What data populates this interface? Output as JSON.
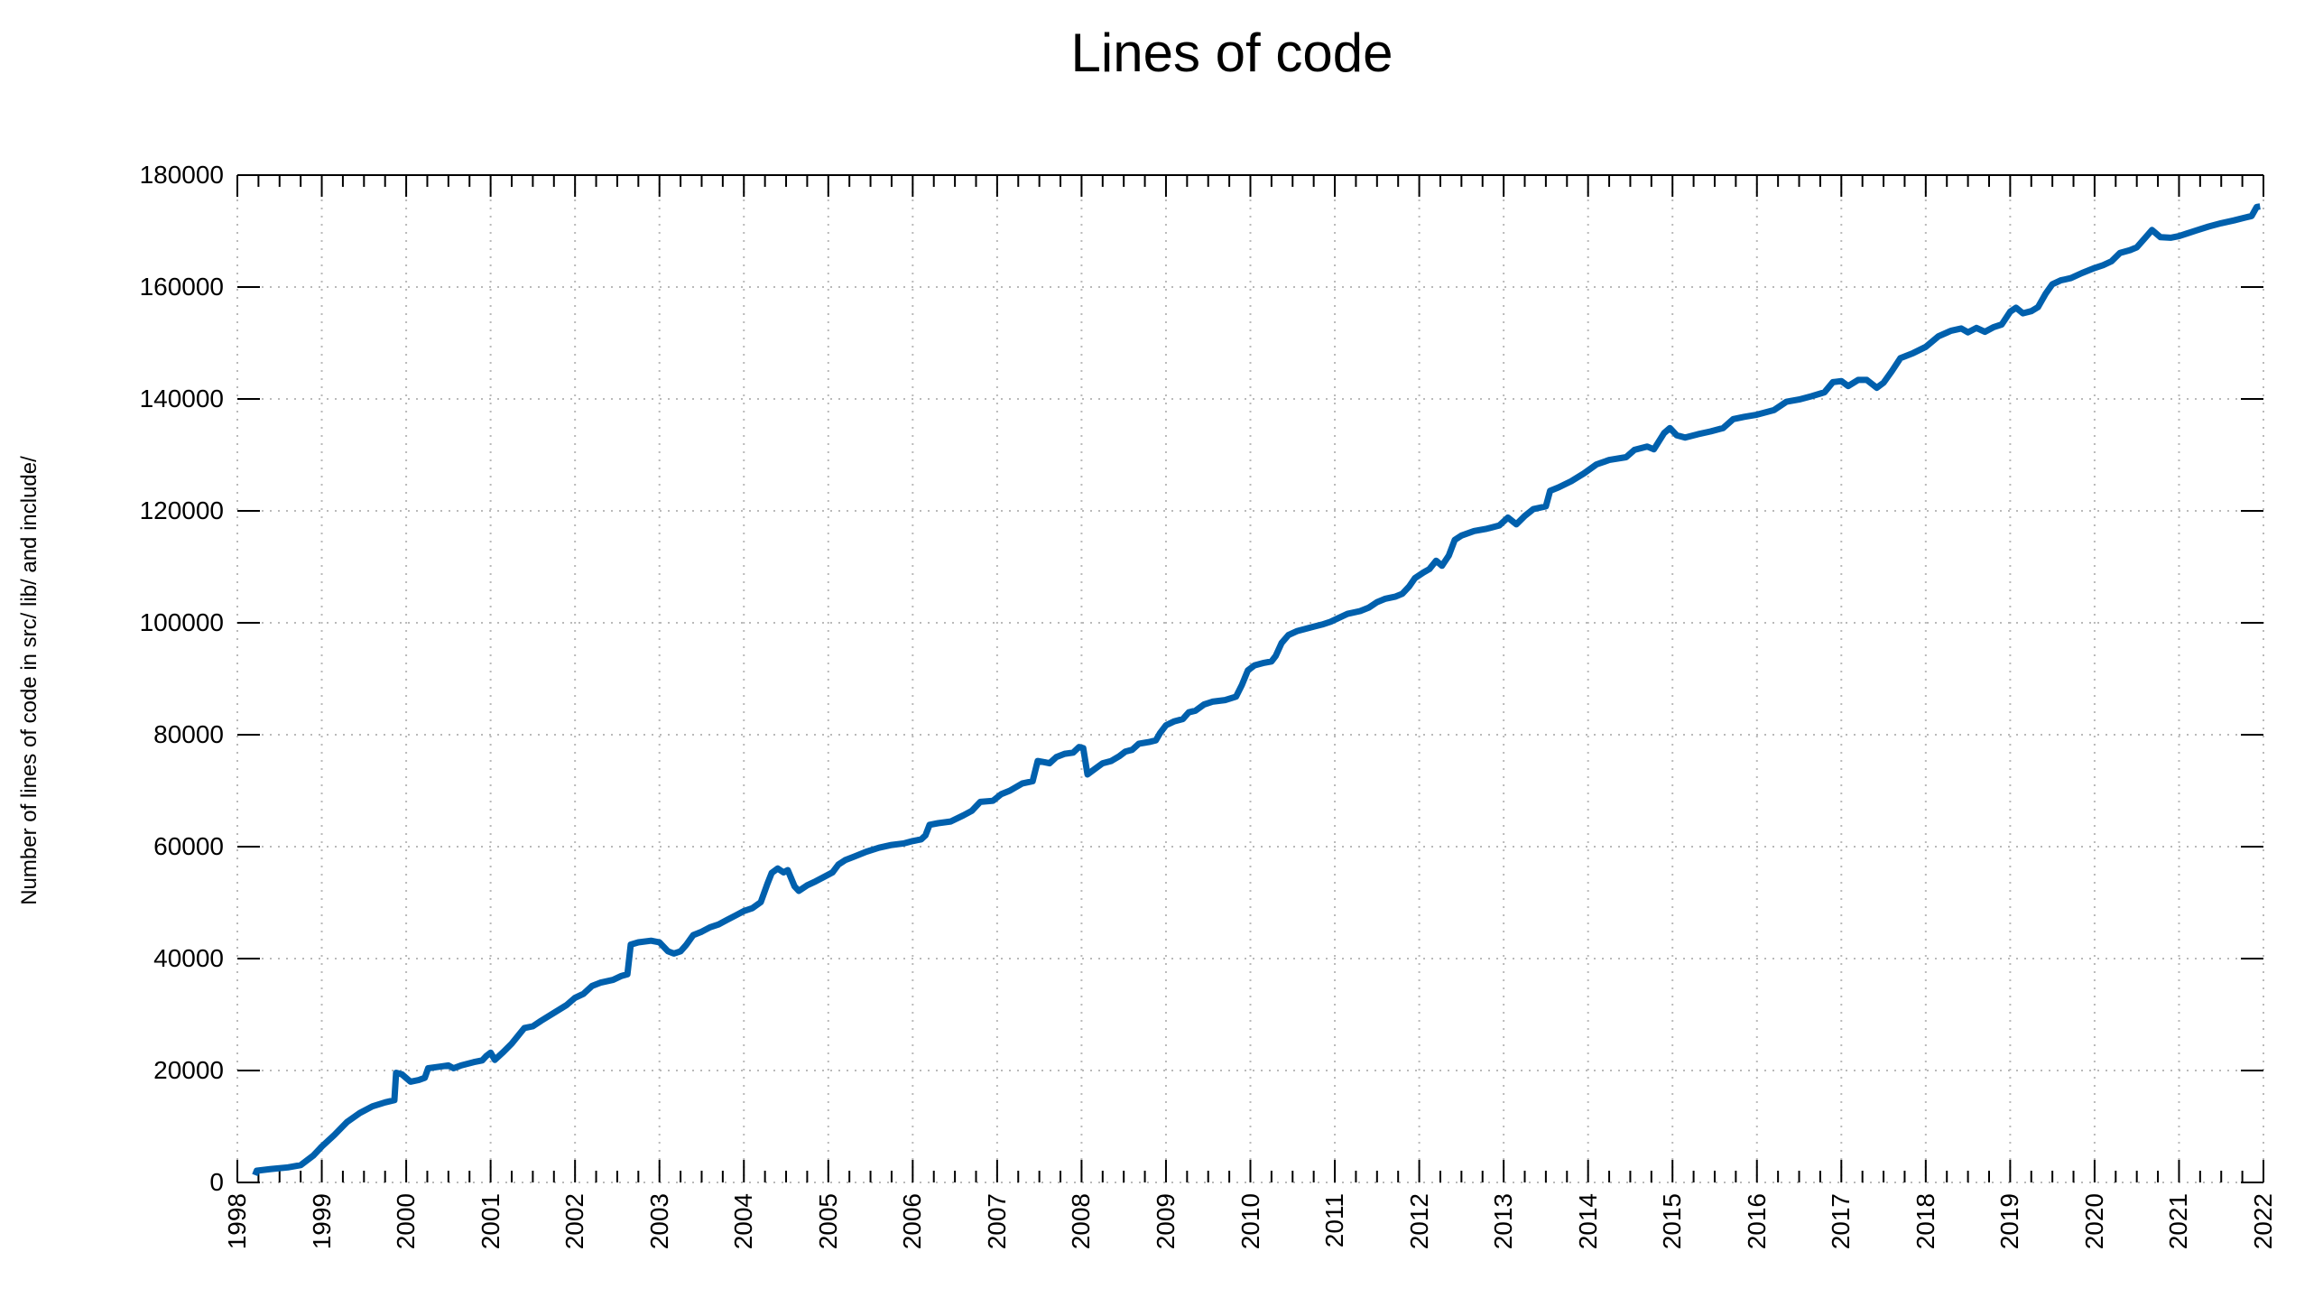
{
  "chart_data": {
    "type": "line",
    "title": "Lines of code",
    "xlabel": "",
    "ylabel": "Number of lines of code in src/ lib/ and include/",
    "xlim": [
      1998,
      2022
    ],
    "ylim": [
      0,
      180000
    ],
    "x_ticks": [
      1998,
      1999,
      2000,
      2001,
      2002,
      2003,
      2004,
      2005,
      2006,
      2007,
      2008,
      2009,
      2010,
      2011,
      2012,
      2013,
      2014,
      2015,
      2016,
      2017,
      2018,
      2019,
      2020,
      2021,
      2022
    ],
    "x_minor_ticks_per_interval": 3,
    "y_ticks": [
      0,
      20000,
      40000,
      60000,
      80000,
      100000,
      120000,
      140000,
      160000,
      180000
    ],
    "grid": "dotted",
    "legend": "none",
    "colors": {
      "line": "#0060ad",
      "grid": "#b9b9b9",
      "axis": "#000000",
      "text": "#000000",
      "background": "#ffffff"
    },
    "series": [
      {
        "name": "lines of code",
        "points": [
          [
            1998.21,
            1300
          ],
          [
            1998.23,
            2100
          ],
          [
            1998.4,
            2400
          ],
          [
            1998.6,
            2700
          ],
          [
            1998.75,
            3100
          ],
          [
            1998.9,
            4800
          ],
          [
            1999.0,
            6400
          ],
          [
            1999.15,
            8500
          ],
          [
            1999.3,
            10800
          ],
          [
            1999.45,
            12400
          ],
          [
            1999.6,
            13600
          ],
          [
            1999.75,
            14300
          ],
          [
            1999.86,
            14700
          ],
          [
            1999.88,
            19600
          ],
          [
            1999.95,
            19300
          ],
          [
            2000.05,
            18000
          ],
          [
            2000.15,
            18300
          ],
          [
            2000.22,
            18700
          ],
          [
            2000.26,
            20400
          ],
          [
            2000.4,
            20700
          ],
          [
            2000.5,
            20900
          ],
          [
            2000.56,
            20400
          ],
          [
            2000.65,
            20900
          ],
          [
            2000.8,
            21500
          ],
          [
            2000.9,
            21800
          ],
          [
            2000.95,
            22600
          ],
          [
            2001.0,
            23200
          ],
          [
            2001.05,
            21900
          ],
          [
            2001.15,
            23300
          ],
          [
            2001.25,
            24800
          ],
          [
            2001.33,
            26300
          ],
          [
            2001.4,
            27600
          ],
          [
            2001.5,
            27900
          ],
          [
            2001.6,
            28900
          ],
          [
            2001.75,
            30300
          ],
          [
            2001.9,
            31700
          ],
          [
            2002.0,
            33000
          ],
          [
            2002.1,
            33700
          ],
          [
            2002.2,
            35100
          ],
          [
            2002.3,
            35700
          ],
          [
            2002.45,
            36200
          ],
          [
            2002.55,
            36900
          ],
          [
            2002.62,
            37200
          ],
          [
            2002.66,
            42500
          ],
          [
            2002.75,
            42900
          ],
          [
            2002.9,
            43200
          ],
          [
            2003.0,
            42900
          ],
          [
            2003.1,
            41300
          ],
          [
            2003.17,
            40900
          ],
          [
            2003.25,
            41300
          ],
          [
            2003.32,
            42500
          ],
          [
            2003.4,
            44200
          ],
          [
            2003.5,
            44800
          ],
          [
            2003.6,
            45600
          ],
          [
            2003.7,
            46100
          ],
          [
            2003.8,
            46900
          ],
          [
            2003.9,
            47700
          ],
          [
            2004.0,
            48500
          ],
          [
            2004.1,
            49000
          ],
          [
            2004.2,
            50100
          ],
          [
            2004.28,
            53400
          ],
          [
            2004.33,
            55300
          ],
          [
            2004.4,
            56100
          ],
          [
            2004.47,
            55400
          ],
          [
            2004.52,
            55800
          ],
          [
            2004.6,
            52900
          ],
          [
            2004.65,
            52100
          ],
          [
            2004.75,
            53100
          ],
          [
            2004.85,
            53800
          ],
          [
            2004.95,
            54600
          ],
          [
            2005.05,
            55400
          ],
          [
            2005.12,
            56800
          ],
          [
            2005.2,
            57600
          ],
          [
            2005.3,
            58200
          ],
          [
            2005.45,
            59100
          ],
          [
            2005.6,
            59800
          ],
          [
            2005.75,
            60300
          ],
          [
            2005.9,
            60600
          ],
          [
            2006.0,
            61000
          ],
          [
            2006.1,
            61300
          ],
          [
            2006.15,
            62000
          ],
          [
            2006.2,
            63900
          ],
          [
            2006.3,
            64200
          ],
          [
            2006.45,
            64500
          ],
          [
            2006.6,
            65600
          ],
          [
            2006.7,
            66400
          ],
          [
            2006.8,
            68000
          ],
          [
            2006.95,
            68200
          ],
          [
            2007.05,
            69400
          ],
          [
            2007.15,
            70000
          ],
          [
            2007.3,
            71300
          ],
          [
            2007.42,
            71700
          ],
          [
            2007.48,
            75300
          ],
          [
            2007.56,
            75100
          ],
          [
            2007.62,
            74900
          ],
          [
            2007.7,
            76000
          ],
          [
            2007.8,
            76600
          ],
          [
            2007.9,
            76800
          ],
          [
            2007.97,
            77800
          ],
          [
            2008.02,
            77600
          ],
          [
            2008.07,
            72900
          ],
          [
            2008.15,
            73800
          ],
          [
            2008.25,
            74900
          ],
          [
            2008.35,
            75300
          ],
          [
            2008.45,
            76200
          ],
          [
            2008.52,
            77000
          ],
          [
            2008.6,
            77300
          ],
          [
            2008.68,
            78400
          ],
          [
            2008.8,
            78700
          ],
          [
            2008.88,
            79000
          ],
          [
            2008.93,
            80300
          ],
          [
            2009.0,
            81700
          ],
          [
            2009.1,
            82400
          ],
          [
            2009.2,
            82800
          ],
          [
            2009.27,
            84000
          ],
          [
            2009.35,
            84300
          ],
          [
            2009.45,
            85400
          ],
          [
            2009.55,
            85900
          ],
          [
            2009.7,
            86200
          ],
          [
            2009.83,
            86800
          ],
          [
            2009.9,
            88900
          ],
          [
            2009.97,
            91500
          ],
          [
            2010.05,
            92400
          ],
          [
            2010.15,
            92800
          ],
          [
            2010.25,
            93100
          ],
          [
            2010.3,
            94100
          ],
          [
            2010.37,
            96400
          ],
          [
            2010.45,
            97800
          ],
          [
            2010.55,
            98500
          ],
          [
            2010.65,
            98900
          ],
          [
            2010.75,
            99300
          ],
          [
            2010.85,
            99700
          ],
          [
            2010.95,
            100200
          ],
          [
            2011.05,
            100900
          ],
          [
            2011.15,
            101600
          ],
          [
            2011.3,
            102100
          ],
          [
            2011.4,
            102700
          ],
          [
            2011.5,
            103700
          ],
          [
            2011.6,
            104300
          ],
          [
            2011.72,
            104700
          ],
          [
            2011.8,
            105200
          ],
          [
            2011.88,
            106500
          ],
          [
            2011.95,
            108000
          ],
          [
            2012.05,
            109000
          ],
          [
            2012.12,
            109600
          ],
          [
            2012.2,
            111100
          ],
          [
            2012.27,
            110200
          ],
          [
            2012.35,
            112000
          ],
          [
            2012.42,
            114800
          ],
          [
            2012.5,
            115600
          ],
          [
            2012.65,
            116400
          ],
          [
            2012.8,
            116800
          ],
          [
            2012.95,
            117400
          ],
          [
            2013.05,
            118800
          ],
          [
            2013.15,
            117600
          ],
          [
            2013.25,
            119100
          ],
          [
            2013.35,
            120300
          ],
          [
            2013.5,
            120800
          ],
          [
            2013.55,
            123600
          ],
          [
            2013.65,
            124200
          ],
          [
            2013.8,
            125300
          ],
          [
            2013.95,
            126700
          ],
          [
            2014.1,
            128300
          ],
          [
            2014.25,
            129100
          ],
          [
            2014.45,
            129600
          ],
          [
            2014.55,
            130900
          ],
          [
            2014.7,
            131500
          ],
          [
            2014.78,
            131000
          ],
          [
            2014.9,
            133900
          ],
          [
            2014.97,
            134800
          ],
          [
            2015.05,
            133500
          ],
          [
            2015.15,
            133100
          ],
          [
            2015.3,
            133700
          ],
          [
            2015.45,
            134200
          ],
          [
            2015.6,
            134800
          ],
          [
            2015.72,
            136400
          ],
          [
            2015.85,
            136800
          ],
          [
            2016.0,
            137200
          ],
          [
            2016.2,
            138000
          ],
          [
            2016.35,
            139500
          ],
          [
            2016.5,
            139900
          ],
          [
            2016.65,
            140500
          ],
          [
            2016.8,
            141200
          ],
          [
            2016.9,
            143000
          ],
          [
            2017.0,
            143200
          ],
          [
            2017.08,
            142300
          ],
          [
            2017.2,
            143400
          ],
          [
            2017.3,
            143400
          ],
          [
            2017.42,
            142000
          ],
          [
            2017.5,
            142900
          ],
          [
            2017.6,
            145000
          ],
          [
            2017.7,
            147300
          ],
          [
            2017.85,
            148200
          ],
          [
            2018.0,
            149300
          ],
          [
            2018.15,
            151200
          ],
          [
            2018.3,
            152200
          ],
          [
            2018.42,
            152600
          ],
          [
            2018.5,
            151900
          ],
          [
            2018.6,
            152700
          ],
          [
            2018.7,
            152000
          ],
          [
            2018.8,
            152800
          ],
          [
            2018.9,
            153300
          ],
          [
            2019.0,
            155600
          ],
          [
            2019.07,
            156300
          ],
          [
            2019.15,
            155300
          ],
          [
            2019.25,
            155700
          ],
          [
            2019.33,
            156400
          ],
          [
            2019.42,
            158800
          ],
          [
            2019.5,
            160500
          ],
          [
            2019.6,
            161200
          ],
          [
            2019.72,
            161600
          ],
          [
            2019.85,
            162500
          ],
          [
            2020.0,
            163400
          ],
          [
            2020.1,
            163900
          ],
          [
            2020.2,
            164600
          ],
          [
            2020.3,
            166100
          ],
          [
            2020.42,
            166600
          ],
          [
            2020.5,
            167100
          ],
          [
            2020.6,
            168800
          ],
          [
            2020.68,
            170200
          ],
          [
            2020.78,
            168900
          ],
          [
            2020.9,
            168800
          ],
          [
            2021.0,
            169100
          ],
          [
            2021.1,
            169600
          ],
          [
            2021.2,
            170100
          ],
          [
            2021.35,
            170800
          ],
          [
            2021.5,
            171400
          ],
          [
            2021.65,
            171900
          ],
          [
            2021.78,
            172400
          ],
          [
            2021.86,
            172700
          ],
          [
            2021.92,
            174300
          ],
          [
            2021.96,
            174400
          ]
        ]
      }
    ]
  }
}
